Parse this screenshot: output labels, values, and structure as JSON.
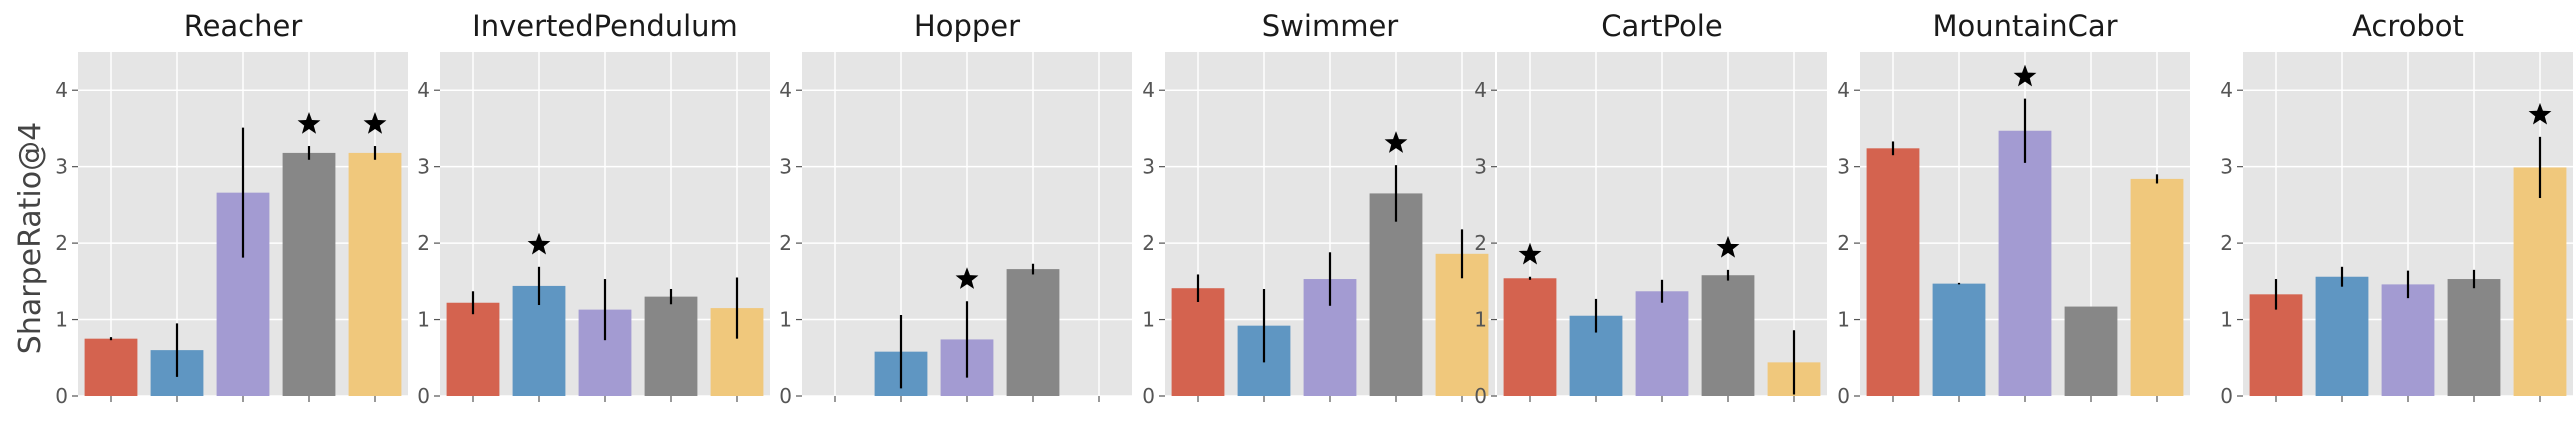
{
  "figure": {
    "ylabel": "SharpeRatio@4"
  },
  "palette": {
    "panel_bg": "#e5e5e5",
    "grid": "#ffffff",
    "tick_text": "#555555",
    "title_text": "#1a1a1a",
    "error_bar": "#000000",
    "series_colors": [
      "#d4634f",
      "#5f96c2",
      "#a39bd2",
      "#878787",
      "#f0c87c"
    ]
  },
  "chart_data": [
    {
      "type": "bar",
      "title": "Reacher",
      "ylim": [
        0,
        4.5
      ],
      "yticks": [
        0,
        1,
        2,
        3,
        4
      ],
      "grid": true,
      "values": [
        0.75,
        0.6,
        2.66,
        3.18,
        3.18
      ],
      "errors": [
        0.02,
        0.35,
        0.85,
        0.09,
        0.09
      ],
      "starred": [
        3,
        4
      ]
    },
    {
      "type": "bar",
      "title": "InvertedPendulum",
      "ylim": [
        0,
        4.5
      ],
      "yticks": [
        0,
        1,
        2,
        3,
        4
      ],
      "grid": true,
      "values": [
        1.22,
        1.44,
        1.13,
        1.3,
        1.15
      ],
      "errors": [
        0.15,
        0.25,
        0.4,
        0.1,
        0.4
      ],
      "starred": [
        1
      ]
    },
    {
      "type": "bar",
      "title": "Hopper",
      "ylim": [
        0,
        4.5
      ],
      "yticks": [
        0,
        1,
        2,
        3,
        4
      ],
      "grid": true,
      "values": [
        null,
        0.58,
        0.74,
        1.66,
        null
      ],
      "errors": [
        null,
        0.48,
        0.5,
        0.07,
        null
      ],
      "starred": [
        2
      ]
    },
    {
      "type": "bar",
      "title": "Swimmer",
      "ylim": [
        0,
        4.5
      ],
      "yticks": [
        0,
        1,
        2,
        3,
        4
      ],
      "grid": true,
      "values": [
        1.41,
        0.92,
        1.53,
        2.65,
        1.86
      ],
      "errors": [
        0.18,
        0.48,
        0.35,
        0.37,
        0.32
      ],
      "starred": [
        3
      ]
    },
    {
      "type": "bar",
      "title": "CartPole",
      "ylim": [
        0,
        4.5
      ],
      "yticks": [
        0,
        1,
        2,
        3,
        4
      ],
      "grid": true,
      "values": [
        1.54,
        1.05,
        1.37,
        1.58,
        0.44
      ],
      "errors": [
        0.02,
        0.22,
        0.15,
        0.07,
        0.42
      ],
      "starred": [
        0,
        3
      ]
    },
    {
      "type": "bar",
      "title": "MountainCar",
      "ylim": [
        0,
        4.5
      ],
      "yticks": [
        0,
        1,
        2,
        3,
        4
      ],
      "grid": true,
      "values": [
        3.24,
        1.47,
        3.47,
        1.17,
        2.84
      ],
      "errors": [
        0.09,
        0.01,
        0.42,
        0.0,
        0.06
      ],
      "starred": [
        2
      ]
    },
    {
      "type": "bar",
      "title": "Acrobot",
      "ylim": [
        0,
        4.5
      ],
      "yticks": [
        0,
        1,
        2,
        3,
        4
      ],
      "grid": true,
      "values": [
        1.33,
        1.56,
        1.46,
        1.53,
        2.99
      ],
      "errors": [
        0.2,
        0.13,
        0.18,
        0.12,
        0.4
      ],
      "starred": [
        4
      ]
    }
  ]
}
